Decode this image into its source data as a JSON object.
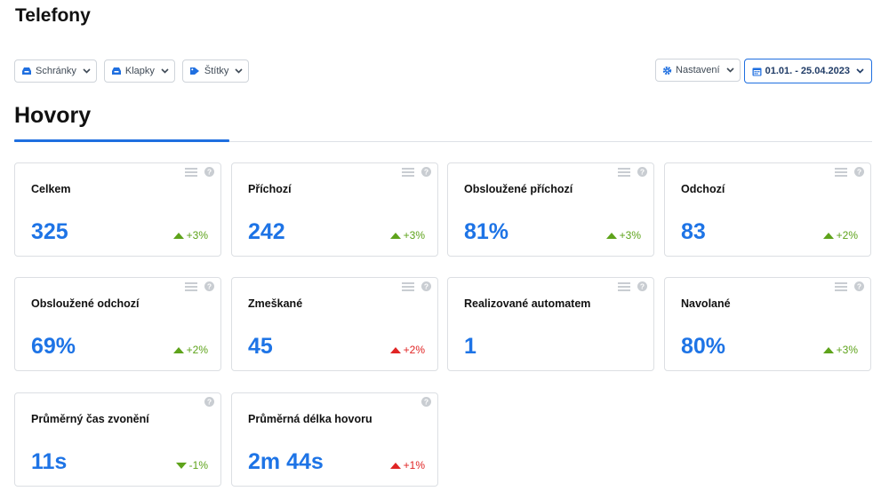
{
  "page": {
    "title": "Telefony"
  },
  "filters": {
    "left": [
      {
        "label": "Schránky",
        "icon": "inbox-icon"
      },
      {
        "label": "Klapky",
        "icon": "inbox-icon"
      },
      {
        "label": "Štítky",
        "icon": "tag-icon"
      }
    ],
    "settings": {
      "label": "Nastavení",
      "icon": "gear-icon"
    },
    "date": {
      "label": "01.01. - 25.04.2023",
      "icon": "calendar-icon"
    }
  },
  "section": {
    "title": "Hovory"
  },
  "cards": [
    {
      "title": "Celkem",
      "value": "325",
      "change": "+3%",
      "trend": "up",
      "color": "green"
    },
    {
      "title": "Příchozí",
      "value": "242",
      "change": "+3%",
      "trend": "up",
      "color": "green"
    },
    {
      "title": "Obsloužené příchozí",
      "value": "81%",
      "change": "+3%",
      "trend": "up",
      "color": "green"
    },
    {
      "title": "Odchozí",
      "value": "83",
      "change": "+2%",
      "trend": "up",
      "color": "green"
    },
    {
      "title": "Obsloužené odchozí",
      "value": "69%",
      "change": "+2%",
      "trend": "up",
      "color": "green"
    },
    {
      "title": "Zmeškané",
      "value": "45",
      "change": "+2%",
      "trend": "up",
      "color": "red"
    },
    {
      "title": "Realizované automatem",
      "value": "1",
      "change": "",
      "trend": "",
      "color": ""
    },
    {
      "title": "Navolané",
      "value": "80%",
      "change": "+3%",
      "trend": "up",
      "color": "green"
    },
    {
      "title": "Průměrný čas zvonění",
      "value": "11s",
      "change": "-1%",
      "trend": "down",
      "color": "green"
    },
    {
      "title": "Průměrná délka hovoru",
      "value": "2m 44s",
      "change": "+1%",
      "trend": "up",
      "color": "red"
    }
  ],
  "colors": {
    "accent": "#1f6fe0",
    "value": "#1e74e6",
    "positive": "#5ea31b",
    "negative": "#e02424"
  }
}
